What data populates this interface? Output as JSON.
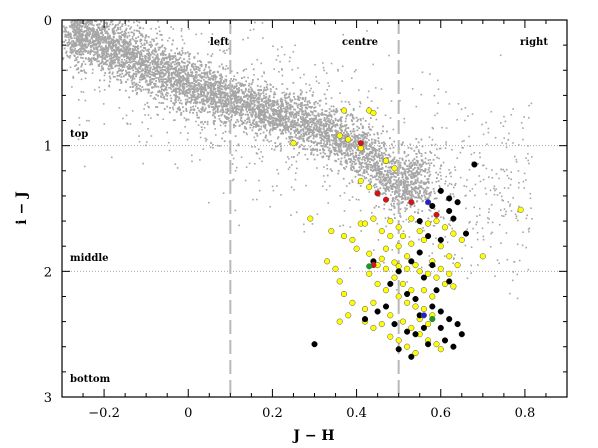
{
  "chart_data": {
    "type": "scatter",
    "xlabel": "J − H",
    "ylabel": "i − J",
    "xlim": [
      -0.3,
      0.9
    ],
    "ylim": [
      3,
      0
    ],
    "y_inverted": true,
    "grid": false,
    "x_ticks": [
      -0.2,
      0,
      0.2,
      0.4,
      0.6,
      0.8
    ],
    "x_tick_labels": [
      "−0.2",
      "0",
      "0.2",
      "0.4",
      "0.6",
      "0.8"
    ],
    "y_ticks": [
      0,
      1,
      2,
      3
    ],
    "y_tick_labels": [
      "0",
      "1",
      "2",
      "3"
    ],
    "region_labels": {
      "left": "left",
      "centre": "centre",
      "right": "right",
      "top": "top",
      "middle": "middle",
      "bottom": "bottom"
    },
    "dividers": {
      "vertical_dashed_x": [
        0.1,
        0.5
      ],
      "horizontal_dotted_y": [
        1,
        2
      ]
    },
    "colors": {
      "field": "#a6a6a6",
      "yellow": "#ffff00",
      "black": "#000000",
      "red": "#e01010",
      "blue": "#2020d0",
      "green": "#10a020",
      "divider": "#b8b8b8"
    },
    "field_band": {
      "n": 5200,
      "segments": [
        [
          -0.25,
          0.12
        ],
        [
          0.05,
          0.58
        ],
        [
          0.3,
          0.85
        ],
        [
          0.42,
          1.05
        ],
        [
          0.5,
          1.3
        ]
      ],
      "width": [
        0.28,
        0.12
      ],
      "extra_scatter": 1200
    },
    "series": [
      {
        "marker": "yellow",
        "points": [
          [
            0.37,
            0.72
          ],
          [
            0.43,
            0.72
          ],
          [
            0.44,
            0.74
          ],
          [
            0.25,
            0.98
          ],
          [
            0.36,
            0.92
          ],
          [
            0.38,
            0.95
          ],
          [
            0.41,
            1.02
          ],
          [
            0.47,
            1.12
          ],
          [
            0.49,
            1.18
          ],
          [
            0.41,
            1.28
          ],
          [
            0.43,
            1.33
          ],
          [
            0.45,
            1.38
          ],
          [
            0.29,
            1.58
          ],
          [
            0.34,
            1.68
          ],
          [
            0.37,
            1.72
          ],
          [
            0.39,
            1.75
          ],
          [
            0.41,
            1.62
          ],
          [
            0.4,
            1.82
          ],
          [
            0.43,
            1.86
          ],
          [
            0.46,
            1.9
          ],
          [
            0.49,
            1.93
          ],
          [
            0.5,
            1.96
          ],
          [
            0.52,
            1.98
          ],
          [
            0.55,
            2.0
          ],
          [
            0.57,
            2.02
          ],
          [
            0.59,
            2.05
          ],
          [
            0.53,
            1.78
          ],
          [
            0.56,
            1.75
          ],
          [
            0.6,
            1.8
          ],
          [
            0.62,
            1.88
          ],
          [
            0.45,
            2.1
          ],
          [
            0.47,
            2.15
          ],
          [
            0.5,
            2.2
          ],
          [
            0.52,
            2.25
          ],
          [
            0.54,
            2.28
          ],
          [
            0.56,
            2.3
          ],
          [
            0.44,
            2.25
          ],
          [
            0.42,
            2.3
          ],
          [
            0.48,
            2.35
          ],
          [
            0.51,
            2.4
          ],
          [
            0.53,
            2.45
          ],
          [
            0.55,
            2.5
          ],
          [
            0.57,
            2.55
          ],
          [
            0.59,
            2.58
          ],
          [
            0.6,
            2.62
          ],
          [
            0.37,
            2.18
          ],
          [
            0.39,
            2.25
          ],
          [
            0.35,
            1.98
          ],
          [
            0.33,
            1.92
          ],
          [
            0.36,
            2.08
          ],
          [
            0.58,
            2.35
          ],
          [
            0.61,
            2.1
          ],
          [
            0.63,
            2.12
          ],
          [
            0.7,
            1.88
          ],
          [
            0.79,
            1.51
          ],
          [
            0.46,
            1.68
          ],
          [
            0.48,
            1.72
          ],
          [
            0.5,
            1.8
          ],
          [
            0.52,
            1.88
          ],
          [
            0.54,
            1.95
          ],
          [
            0.49,
            2.05
          ],
          [
            0.51,
            2.1
          ],
          [
            0.53,
            2.15
          ],
          [
            0.47,
            1.98
          ],
          [
            0.45,
            1.95
          ],
          [
            0.43,
            2.02
          ],
          [
            0.58,
            1.92
          ],
          [
            0.6,
            1.98
          ],
          [
            0.62,
            2.02
          ],
          [
            0.56,
            2.15
          ],
          [
            0.58,
            2.2
          ],
          [
            0.48,
            2.52
          ],
          [
            0.5,
            2.55
          ],
          [
            0.46,
            2.42
          ],
          [
            0.44,
            2.45
          ],
          [
            0.42,
            2.4
          ],
          [
            0.38,
            2.35
          ],
          [
            0.36,
            2.4
          ],
          [
            0.55,
            1.68
          ],
          [
            0.57,
            1.62
          ],
          [
            0.59,
            1.6
          ],
          [
            0.61,
            1.65
          ],
          [
            0.63,
            1.7
          ],
          [
            0.65,
            1.75
          ],
          [
            0.51,
            1.72
          ],
          [
            0.47,
            1.82
          ],
          [
            0.55,
            2.38
          ],
          [
            0.57,
            2.42
          ],
          [
            0.52,
            2.6
          ],
          [
            0.54,
            2.65
          ],
          [
            0.44,
            1.58
          ],
          [
            0.42,
            1.62
          ],
          [
            0.48,
            1.6
          ],
          [
            0.5,
            1.65
          ],
          [
            0.53,
            1.58
          ],
          [
            0.64,
            1.95
          ]
        ]
      },
      {
        "marker": "black",
        "points": [
          [
            0.68,
            1.15
          ],
          [
            0.6,
            1.36
          ],
          [
            0.64,
            1.45
          ],
          [
            0.62,
            1.52
          ],
          [
            0.58,
            1.48
          ],
          [
            0.55,
            1.6
          ],
          [
            0.63,
            1.58
          ],
          [
            0.57,
            1.72
          ],
          [
            0.6,
            1.75
          ],
          [
            0.55,
            1.85
          ],
          [
            0.53,
            1.92
          ],
          [
            0.58,
            1.95
          ],
          [
            0.56,
            2.05
          ],
          [
            0.62,
            2.08
          ],
          [
            0.5,
            2.0
          ],
          [
            0.48,
            2.1
          ],
          [
            0.52,
            2.18
          ],
          [
            0.54,
            2.22
          ],
          [
            0.58,
            2.28
          ],
          [
            0.6,
            2.32
          ],
          [
            0.62,
            2.38
          ],
          [
            0.64,
            2.42
          ],
          [
            0.56,
            2.45
          ],
          [
            0.54,
            2.5
          ],
          [
            0.57,
            2.58
          ],
          [
            0.61,
            2.55
          ],
          [
            0.65,
            2.5
          ],
          [
            0.63,
            2.6
          ],
          [
            0.52,
            2.48
          ],
          [
            0.42,
            2.38
          ],
          [
            0.44,
            1.92
          ],
          [
            0.45,
            2.32
          ],
          [
            0.5,
            2.62
          ],
          [
            0.53,
            2.68
          ],
          [
            0.3,
            2.58
          ],
          [
            0.49,
            2.42
          ],
          [
            0.47,
            2.28
          ],
          [
            0.59,
            2.15
          ],
          [
            0.55,
            2.35
          ],
          [
            0.6,
            2.45
          ],
          [
            0.66,
            1.7
          ],
          [
            0.62,
            1.42
          ]
        ]
      },
      {
        "marker": "red",
        "points": [
          [
            0.41,
            0.98
          ],
          [
            0.45,
            1.38
          ],
          [
            0.47,
            1.43
          ],
          [
            0.53,
            1.45
          ],
          [
            0.59,
            1.55
          ],
          [
            0.44,
            1.95
          ]
        ]
      },
      {
        "marker": "blue",
        "points": [
          [
            0.57,
            1.45
          ],
          [
            0.56,
            2.35
          ]
        ]
      },
      {
        "marker": "green",
        "points": [
          [
            0.43,
            1.96
          ],
          [
            0.58,
            2.38
          ]
        ]
      }
    ]
  }
}
